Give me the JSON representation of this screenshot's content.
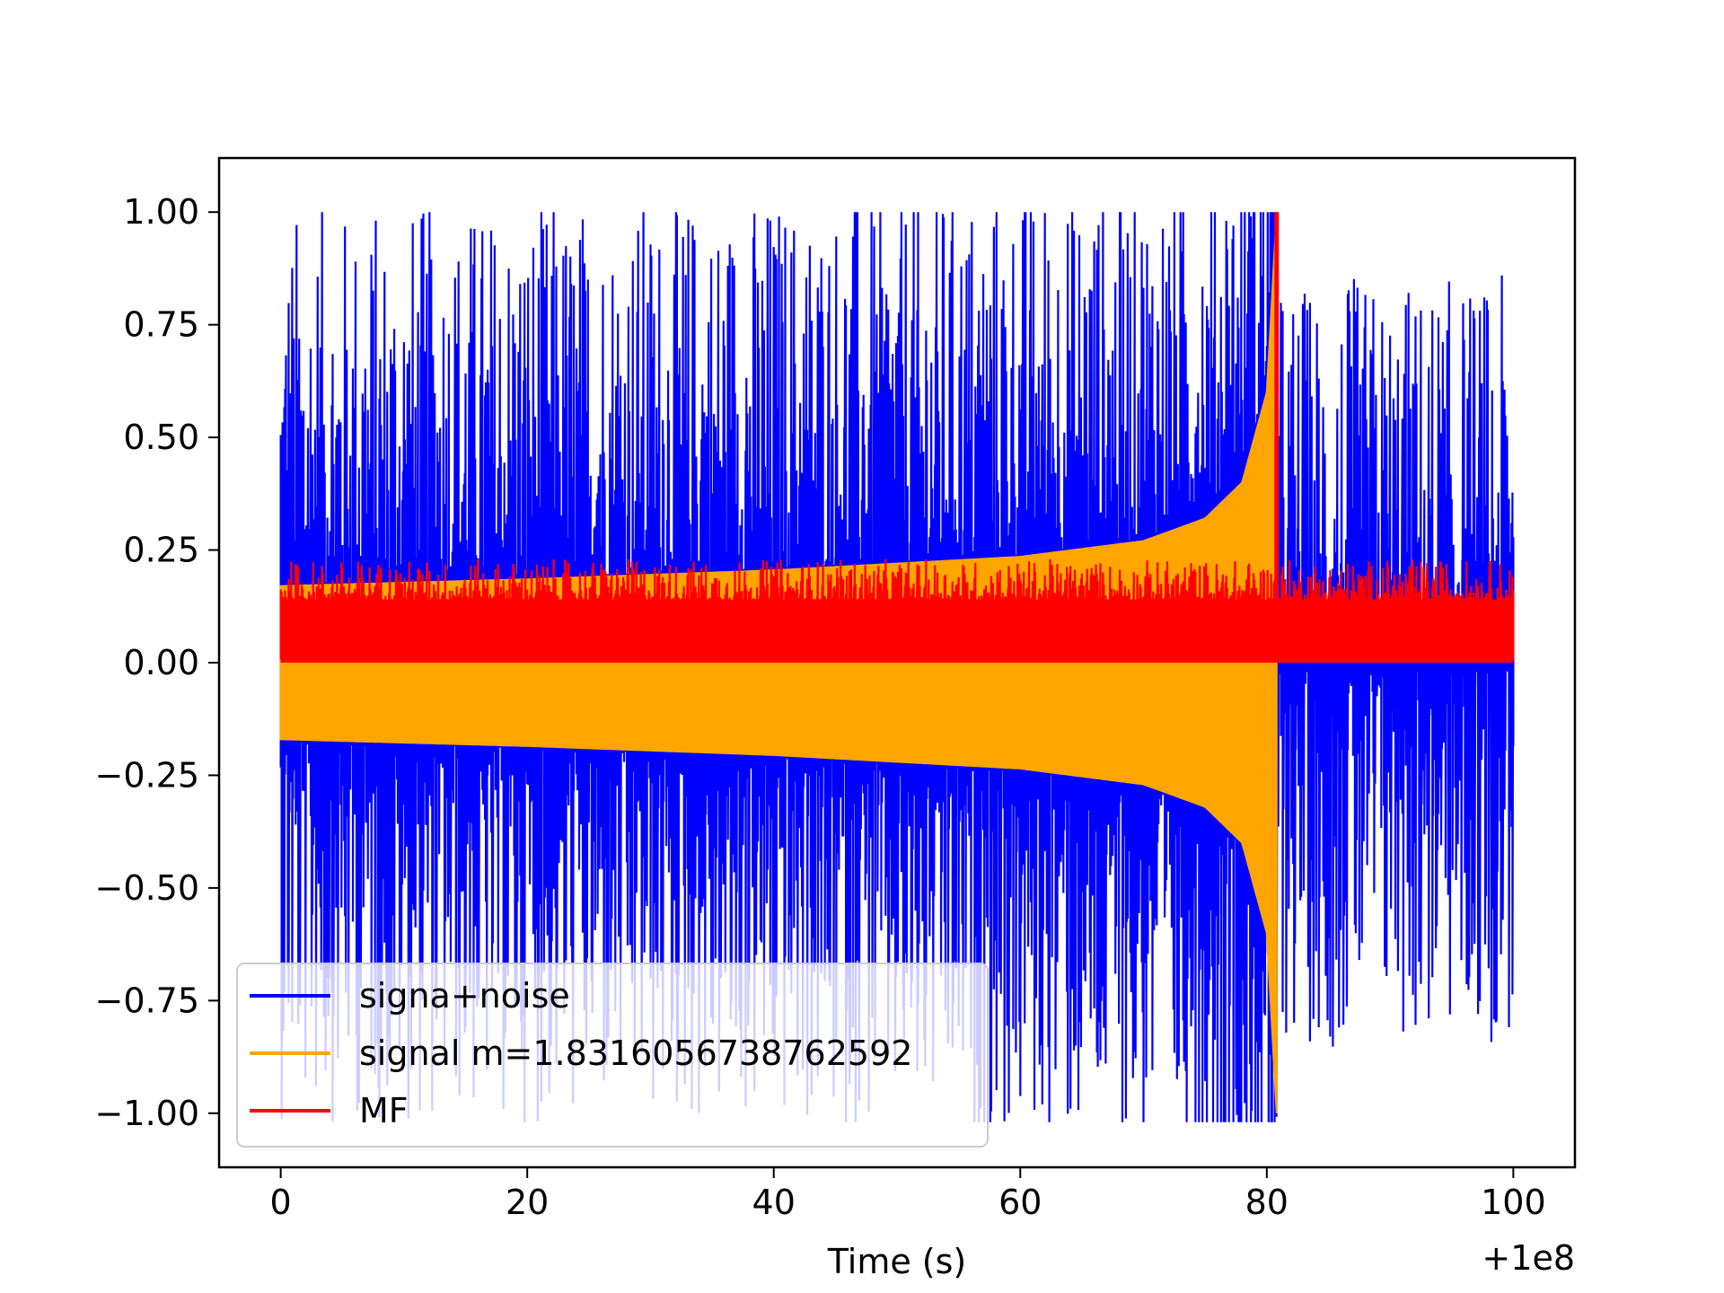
{
  "chart_data": {
    "type": "line",
    "title": "",
    "xlabel": "Time (s)",
    "ylabel": "",
    "x_offset_label": "+1e8",
    "xlim": [
      -5,
      105
    ],
    "ylim": [
      -1.12,
      1.12
    ],
    "xticks": [
      0,
      20,
      40,
      60,
      80,
      100
    ],
    "xtick_labels": [
      "0",
      "20",
      "40",
      "60",
      "80",
      "100"
    ],
    "yticks": [
      1.0,
      0.75,
      0.5,
      0.25,
      0.0,
      -0.25,
      -0.5,
      -0.75,
      -1.0
    ],
    "ytick_labels": [
      "1.00",
      "0.75",
      "0.50",
      "0.25",
      "0.00",
      "−0.25",
      "−0.50",
      "−0.75",
      "−1.00"
    ],
    "grid": false,
    "legend_position": "lower-left",
    "series": [
      {
        "name": "signa+noise",
        "color": "#0000ff",
        "x_range": [
          0,
          100
        ],
        "baseline_band": {
          "before_merger": [
            -0.17,
            0.17
          ],
          "after_merger": [
            -0.01,
            0.01
          ]
        },
        "peak_range": [
          -1.02,
          1.0
        ]
      },
      {
        "name": "signal m=1.8316056738762592",
        "color": "#ffa500",
        "x_range": [
          0,
          80.8
        ],
        "envelope": [
          {
            "x": 0,
            "amp": 0.17
          },
          {
            "x": 20,
            "amp": 0.185
          },
          {
            "x": 40,
            "amp": 0.205
          },
          {
            "x": 60,
            "amp": 0.235
          },
          {
            "x": 70,
            "amp": 0.27
          },
          {
            "x": 75,
            "amp": 0.32
          },
          {
            "x": 78,
            "amp": 0.4
          },
          {
            "x": 80,
            "amp": 0.6
          },
          {
            "x": 80.8,
            "amp": 1.0
          }
        ]
      },
      {
        "name": "MF",
        "color": "#ff0000",
        "x_range": [
          0,
          100
        ],
        "band": [
          0.0,
          0.17
        ],
        "peak": {
          "x": 80.8,
          "y": 1.0
        }
      }
    ]
  }
}
